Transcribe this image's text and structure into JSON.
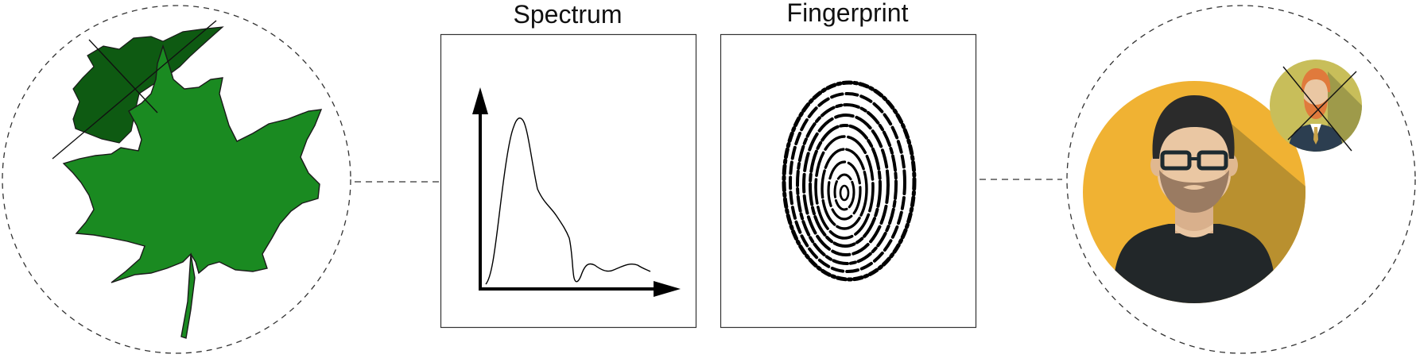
{
  "panels": {
    "spectrum": {
      "title": "Spectrum"
    },
    "fingerprint": {
      "title": "Fingerprint"
    }
  },
  "colors": {
    "leaf_light": "#1a8a21",
    "leaf_dark": "#0e5a12",
    "face_bg": "#f0b233",
    "face_shadow": "#b9902f",
    "skin": "#eac7a3",
    "beard": "#9a7b62",
    "hair": "#2b2b2b",
    "shirt": "#222729",
    "small_bg": "#c8be5a",
    "small_hair": "#e07a3c",
    "small_suit": "#2c3e50"
  },
  "icons": [
    "maple-leaf-icon",
    "crossed-leaf-icon",
    "spectrum-plot-icon",
    "fingerprint-icon",
    "man-avatar-icon",
    "crossed-small-avatar-icon"
  ]
}
